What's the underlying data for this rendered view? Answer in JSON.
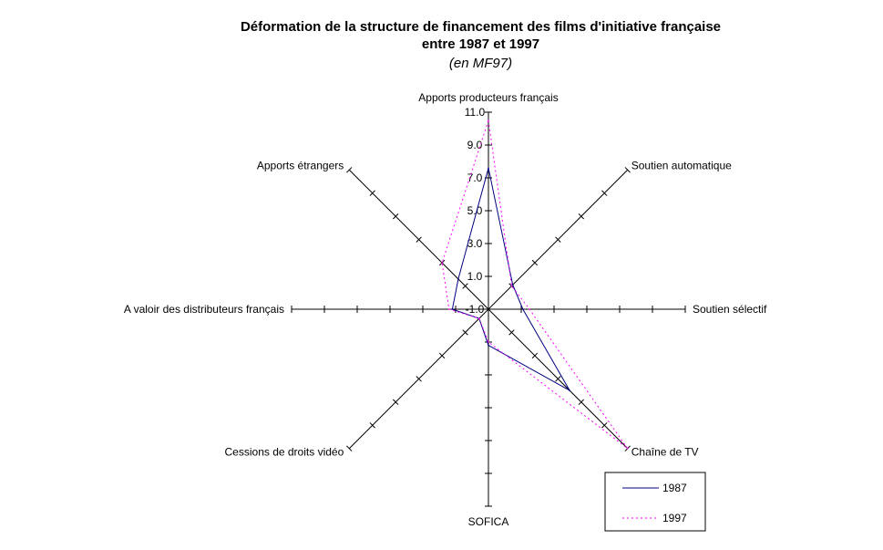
{
  "chart_data": {
    "type": "radar",
    "title_line1": "Déformation de la structure de financement des films d'initiative française",
    "title_line2": "entre 1987 et 1997",
    "subtitle": "(en MF97)",
    "axes": [
      "Apports producteurs français",
      "Soutien automatique",
      "Soutien sélectif",
      "Chaîne de TV",
      "SOFICA",
      "Cessions de droits vidéo",
      "A valoir des distributeurs français",
      "Apports étrangers"
    ],
    "scale": {
      "min": -1.0,
      "max": 11.0,
      "major_step": 2.0
    },
    "tick_labels": [
      "-1.0",
      "1.0",
      "3.0",
      "5.0",
      "7.0",
      "9.0",
      "11.0"
    ],
    "series": [
      {
        "name": "1987",
        "color": "#000080",
        "dash": "solid",
        "values": [
          7.6,
          1.1,
          1.1,
          6.0,
          1.2,
          -0.2,
          1.2,
          1.6
        ]
      },
      {
        "name": "1997",
        "color": "#ff00ff",
        "dash": "dotted",
        "values": [
          10.5,
          1.0,
          1.5,
          11.0,
          1.0,
          -0.2,
          1.4,
          3.0
        ]
      }
    ],
    "legend_position": "bottom-right"
  }
}
